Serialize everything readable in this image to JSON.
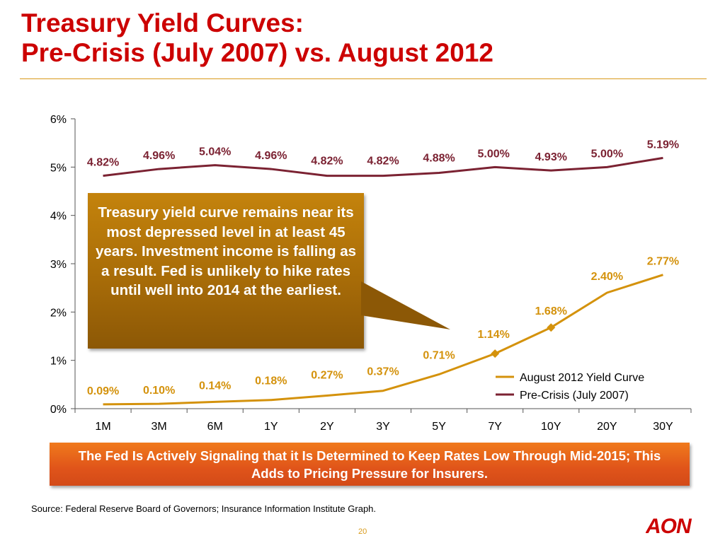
{
  "slide": {
    "title_line1": "Treasury Yield Curves:",
    "title_line2": "Pre-Crisis (July 2007) vs. August 2012",
    "callout_text": "Treasury yield curve remains near its most depressed level in at least 45 years. Investment income is falling as a result.  Fed is unlikely to hike rates until well into 2014 at the earliest.",
    "banner_text": "The Fed Is Actively Signaling that it Is Determined to Keep Rates Low Through Mid-2015;  This Adds to Pricing Pressure for Insurers.",
    "source_text": "Source: Federal Reserve Board of Governors; Insurance Information Institute Graph.",
    "page_number": "20",
    "logo_text": "AON",
    "colors": {
      "title": "#cc0000",
      "rule": "#d89a1a",
      "callout": "#a86c08",
      "banner": "#e0541a"
    }
  },
  "chart_data": {
    "type": "line",
    "categories": [
      "1M",
      "3M",
      "6M",
      "1Y",
      "2Y",
      "3Y",
      "5Y",
      "7Y",
      "10Y",
      "20Y",
      "30Y"
    ],
    "ylim": [
      0,
      6
    ],
    "yticks": [
      "0%",
      "1%",
      "2%",
      "3%",
      "4%",
      "5%",
      "6%"
    ],
    "series": [
      {
        "name": "Pre-Crisis (July 2007)",
        "color": "#7b2232",
        "values": [
          4.82,
          4.96,
          5.04,
          4.96,
          4.82,
          4.82,
          4.88,
          5.0,
          4.93,
          5.0,
          5.19
        ],
        "labels": [
          "4.82%",
          "4.96%",
          "5.04%",
          "4.96%",
          "4.82%",
          "4.82%",
          "4.88%",
          "5.00%",
          "4.93%",
          "5.00%",
          "5.19%"
        ]
      },
      {
        "name": "August 2012 Yield Curve",
        "color": "#d4920c",
        "values": [
          0.09,
          0.1,
          0.14,
          0.18,
          0.27,
          0.37,
          0.71,
          1.14,
          1.68,
          2.4,
          2.77
        ],
        "labels": [
          "0.09%",
          "0.10%",
          "0.14%",
          "0.18%",
          "0.27%",
          "0.37%",
          "0.71%",
          "1.14%",
          "1.68%",
          "2.40%",
          "2.77%"
        ],
        "markers": [
          false,
          false,
          false,
          false,
          false,
          false,
          false,
          true,
          true,
          false,
          false
        ]
      }
    ],
    "legend": {
      "position": "bottom-right",
      "entries": [
        "August 2012 Yield Curve",
        "Pre-Crisis (July 2007)"
      ]
    },
    "grid": false
  }
}
